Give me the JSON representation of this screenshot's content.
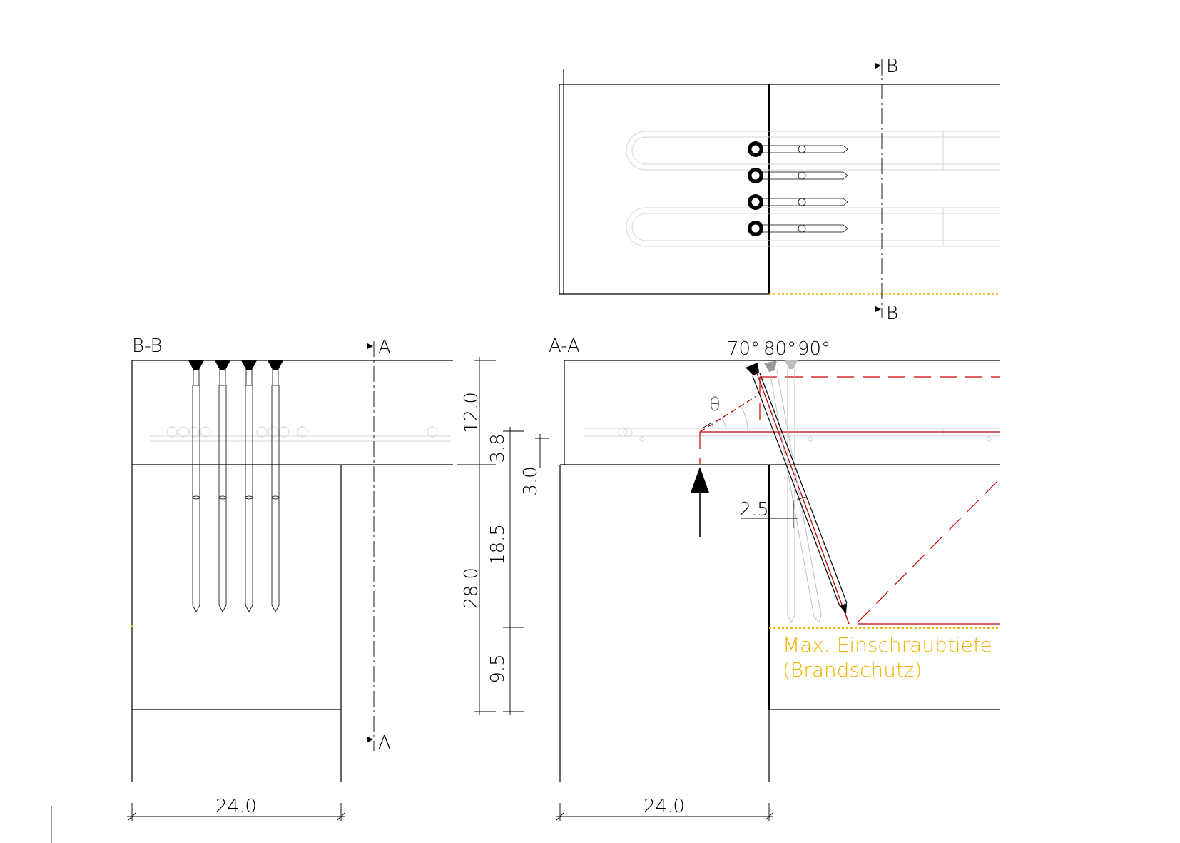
{
  "sections": {
    "bb_title": "B-B",
    "aa_title": "A-A",
    "cut_b_top": "B",
    "cut_b_bottom": "B",
    "cut_a_top": "A",
    "cut_a_bottom": "A"
  },
  "angles": {
    "a70": "70°",
    "a80": "80°",
    "a90": "90°",
    "theta": "θ"
  },
  "dimensions": {
    "d12": "12.0",
    "d38": "3.8",
    "d30": "3.0",
    "d185": "18.5",
    "d280": "28.0",
    "d95": "9.5",
    "d25": "2.5",
    "width_left": "24.0",
    "width_right": "24.0"
  },
  "note": {
    "line1": "Max. Einschraubtiefe",
    "line2": "(Brandschutz)",
    "color": "#f0b400"
  },
  "colors": {
    "line": "#000000",
    "red": "#c00000",
    "orange": "#f0b400",
    "grey": "#bdbdbd"
  }
}
